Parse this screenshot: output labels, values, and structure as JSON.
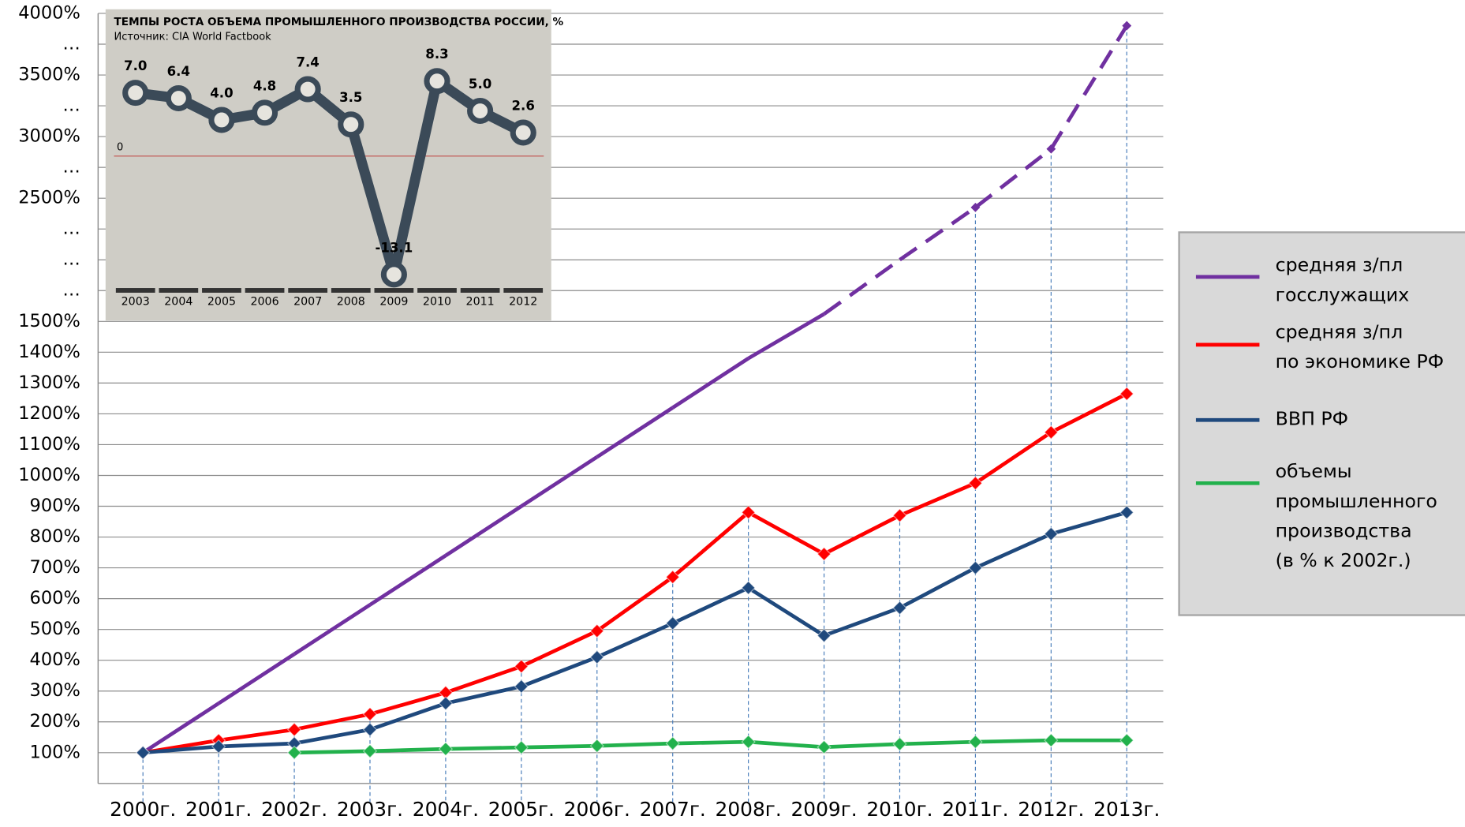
{
  "chart_data": [
    {
      "type": "line",
      "categories": [
        "2000г.",
        "2001г.",
        "2002г.",
        "2003г.",
        "2004г.",
        "2005г.",
        "2006г.",
        "2007г.",
        "2008г.",
        "2009г.",
        "2010г.",
        "2011г.",
        "2012г.",
        "2013г."
      ],
      "series": [
        {
          "name": "средняя з/пл\nгосслужащих",
          "color": "#7030a0",
          "dash_after": "2010г.",
          "values": [
            100,
            260,
            420,
            580,
            740,
            900,
            1060,
            1220,
            1380,
            1560,
            2000,
            2425,
            2900,
            3900
          ]
        },
        {
          "name": "средняя з/пл\nпо экономике РФ",
          "color": "#ff0000",
          "values": [
            100,
            140,
            175,
            225,
            295,
            380,
            495,
            670,
            880,
            745,
            870,
            975,
            1140,
            1265
          ]
        },
        {
          "name": "ВВП РФ",
          "color": "#1f497d",
          "values": [
            100,
            120,
            130,
            175,
            260,
            315,
            410,
            520,
            635,
            480,
            570,
            700,
            810,
            880
          ]
        },
        {
          "name": "объемы\nпромышленного\nпроизводства\n(в % к 2002г.)",
          "color": "#22b14c",
          "values": [
            null,
            null,
            100,
            105,
            112,
            117,
            122,
            130,
            135,
            118,
            128,
            135,
            140,
            140
          ]
        }
      ],
      "ylim": [
        0,
        4000
      ],
      "yticks": [
        {
          "value": 100,
          "label": "100%"
        },
        {
          "value": 200,
          "label": "200%"
        },
        {
          "value": 300,
          "label": "300%"
        },
        {
          "value": 400,
          "label": "400%"
        },
        {
          "value": 500,
          "label": "500%"
        },
        {
          "value": 600,
          "label": "600%"
        },
        {
          "value": 700,
          "label": "700%"
        },
        {
          "value": 800,
          "label": "800%"
        },
        {
          "value": 900,
          "label": "900%"
        },
        {
          "value": 1000,
          "label": "1000%"
        },
        {
          "value": 1100,
          "label": "1100%"
        },
        {
          "value": 1200,
          "label": "1200%"
        },
        {
          "value": 1300,
          "label": "1300%"
        },
        {
          "value": 1400,
          "label": "1400%"
        },
        {
          "value": 1500,
          "label": "1500%"
        },
        {
          "value": 1750,
          "label": "…"
        },
        {
          "value": 2000,
          "label": "…"
        },
        {
          "value": 2250,
          "label": "…"
        },
        {
          "value": 2500,
          "label": "2500%"
        },
        {
          "value": 2750,
          "label": "…"
        },
        {
          "value": 3000,
          "label": "3000%"
        },
        {
          "value": 3250,
          "label": "…"
        },
        {
          "value": 3500,
          "label": "3500%"
        },
        {
          "value": 3750,
          "label": "…"
        },
        {
          "value": 4000,
          "label": "4000%"
        }
      ],
      "y_scale": "evenly spaced ticks",
      "grid": true,
      "legend": "right"
    },
    {
      "type": "line",
      "title": "ТЕМПЫ РОСТА ОБЪЕМА ПРОМЫШЛЕННОГО ПРОИЗВОДСТВА РОССИИ, %",
      "subtitle": "Источник: CIA World Factbook",
      "categories": [
        "2003",
        "2004",
        "2005",
        "2006",
        "2007",
        "2008",
        "2009",
        "2010",
        "2011",
        "2012"
      ],
      "values": [
        7.0,
        6.4,
        4.0,
        4.8,
        7.4,
        3.5,
        -13.1,
        8.3,
        5.0,
        2.6
      ],
      "value_labels": [
        "7.0",
        "6.4",
        "4.0",
        "4.8",
        "7.4",
        "3.5",
        "-13.1",
        "8.3",
        "5.0",
        "2.6"
      ],
      "color": "#3b4a58",
      "ylim": [
        -14.6,
        11.1
      ],
      "yticks": [
        0
      ]
    }
  ]
}
